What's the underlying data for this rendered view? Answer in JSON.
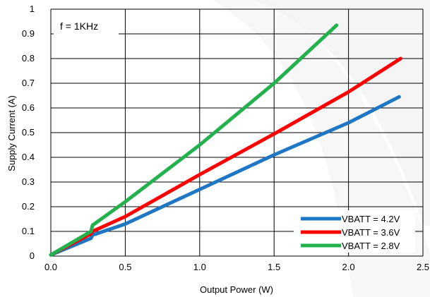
{
  "chart_data": {
    "type": "line",
    "xlabel": "Output Power (W)",
    "ylabel": "Supply Current (A)",
    "xlim": [
      0,
      2.5
    ],
    "ylim": [
      0,
      1
    ],
    "x_ticks": [
      "0.0",
      "0.5",
      "1.0",
      "1.5",
      "2.0",
      "2.5"
    ],
    "y_ticks": [
      "0",
      "0.1",
      "0.2",
      "0.3",
      "0.4",
      "0.5",
      "0.6",
      "0.7",
      "0.8",
      "0.9",
      "1"
    ],
    "grid": true,
    "legend_position": "bottom-right",
    "annotation": "f = 1KHz",
    "series": [
      {
        "name": "VBATT = 4.2V",
        "color": "#1f77c4",
        "x": [
          0.0,
          0.27,
          0.28,
          0.5,
          1.0,
          1.5,
          2.0,
          2.34
        ],
        "y": [
          0.005,
          0.072,
          0.085,
          0.13,
          0.27,
          0.41,
          0.54,
          0.645
        ]
      },
      {
        "name": "VBATT = 3.6V",
        "color": "#ff0000",
        "x": [
          0.0,
          0.27,
          0.28,
          0.5,
          1.0,
          1.5,
          2.0,
          2.35
        ],
        "y": [
          0.005,
          0.09,
          0.1,
          0.16,
          0.33,
          0.495,
          0.665,
          0.8
        ]
      },
      {
        "name": "VBATT = 2.8V",
        "color": "#22b14c",
        "x": [
          0.0,
          0.27,
          0.28,
          0.5,
          1.0,
          1.5,
          1.92
        ],
        "y": [
          0.005,
          0.1,
          0.125,
          0.22,
          0.45,
          0.7,
          0.935
        ]
      }
    ]
  }
}
